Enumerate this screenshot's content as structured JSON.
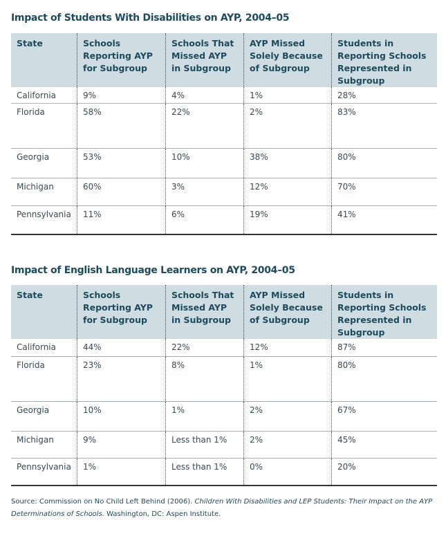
{
  "headers": [
    "State",
    "Schools Reporting AYP for Subgroup",
    "Schools That Missed AYP in Subgroup",
    "AYP Missed Solely Because of Subgroup",
    "Students in Reporting Schools Represented in Subgroup"
  ],
  "tables": [
    {
      "title": "Impact of Students With Disabilities on AYP, 2004–05",
      "rows": [
        [
          "California",
          "9%",
          "4%",
          "1%",
          "28%"
        ],
        [
          "Florida",
          "58%",
          "22%",
          "2%",
          "83%"
        ],
        [
          "Georgia",
          "53%",
          "10%",
          "38%",
          "80%"
        ],
        [
          "Michigan",
          "60%",
          "3%",
          "12%",
          "70%"
        ],
        [
          "Pennsylvania",
          "11%",
          "6%",
          "19%",
          "41%"
        ]
      ]
    },
    {
      "title": "Impact of English Language Learners on AYP, 2004–05",
      "rows": [
        [
          "California",
          "44%",
          "22%",
          "12%",
          "87%"
        ],
        [
          "Florida",
          "23%",
          "8%",
          "1%",
          "80%"
        ],
        [
          "Georgia",
          "10%",
          "1%",
          "2%",
          "67%"
        ],
        [
          "Michigan",
          "9%",
          "Less than 1%",
          "2%",
          "45%"
        ],
        [
          "Pennsylvania",
          "1%",
          "Less than 1%",
          "0%",
          "20%"
        ]
      ]
    }
  ],
  "source": {
    "prefix": "Source: Commission on No Child Left Behind (2006). ",
    "italic": "Children With Disabilities and LEP Students: Their Impact on the AYP Determinations of Schools.",
    "suffix": " Washington, DC: Aspen Institute."
  }
}
